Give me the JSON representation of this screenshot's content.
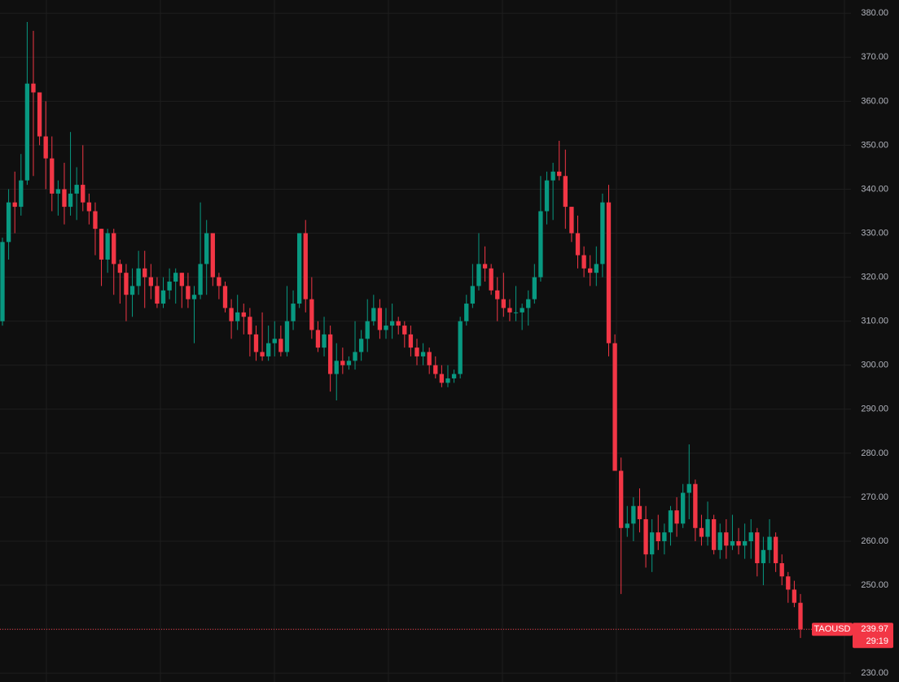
{
  "chart_data": {
    "type": "candlestick",
    "symbol": "TAOUSD",
    "countdown": "29:19",
    "up_color": "#089981",
    "down_color": "#f23645",
    "grid": true,
    "ylim": [
      228,
      383
    ],
    "yticks": [
      {
        "value": 230,
        "label": "230.00"
      },
      {
        "value": 240,
        "label": "240.00"
      },
      {
        "value": 250,
        "label": "250.00"
      },
      {
        "value": 260,
        "label": "260.00"
      },
      {
        "value": 270,
        "label": "270.00"
      },
      {
        "value": 280,
        "label": "280.00"
      },
      {
        "value": 290,
        "label": "290.00"
      },
      {
        "value": 300,
        "label": "300.00"
      },
      {
        "value": 310,
        "label": "310.00"
      },
      {
        "value": 320,
        "label": "320.00"
      },
      {
        "value": 330,
        "label": "330.00"
      },
      {
        "value": 340,
        "label": "340.00"
      },
      {
        "value": 350,
        "label": "350.00"
      },
      {
        "value": 360,
        "label": "360.00"
      },
      {
        "value": 370,
        "label": "370.00"
      },
      {
        "value": 380,
        "label": "380.00"
      }
    ],
    "open": [
      310,
      328,
      337,
      336,
      342,
      364,
      362,
      352,
      347,
      339,
      340,
      336,
      339,
      341,
      337,
      335,
      331,
      324,
      330,
      323,
      321,
      316,
      318,
      322,
      320,
      318,
      314,
      317,
      319,
      321,
      318,
      315,
      316,
      323,
      330,
      320,
      318,
      313,
      310,
      312,
      311,
      307,
      303,
      302,
      305,
      306,
      303,
      310,
      314,
      330,
      315,
      308,
      304,
      307,
      298,
      301,
      300,
      301,
      303,
      306,
      310,
      313,
      308,
      309,
      310,
      309,
      307,
      304,
      302,
      303,
      300,
      298,
      296,
      297,
      298,
      310,
      314,
      318,
      323,
      322,
      317,
      315,
      313,
      312,
      312,
      313,
      315,
      320,
      335,
      342,
      344,
      343,
      336,
      330,
      325,
      322,
      321,
      323,
      337,
      305,
      276,
      263,
      264,
      268,
      265,
      257,
      262,
      260,
      262,
      267,
      264,
      271,
      273,
      263,
      261,
      265,
      258,
      262,
      259,
      260,
      259,
      260,
      262,
      255,
      258,
      261,
      255,
      252,
      249,
      246
    ],
    "high": [
      329,
      340,
      344,
      348,
      378,
      376,
      362,
      360,
      352,
      342,
      346,
      353,
      345,
      350,
      339,
      337,
      331,
      331,
      331,
      324,
      323,
      322,
      326,
      326,
      323,
      320,
      320,
      322,
      322,
      321,
      321,
      318,
      337,
      333,
      330,
      321,
      319,
      315,
      316,
      314,
      313,
      309,
      312,
      309,
      310,
      309,
      318,
      317,
      330,
      333,
      320,
      310,
      311,
      309,
      305,
      304,
      302,
      310,
      308,
      315,
      316,
      315,
      313,
      314,
      311,
      310,
      309,
      306,
      305,
      304,
      302,
      300,
      300,
      299,
      311,
      316,
      323,
      330,
      327,
      323,
      320,
      321,
      315,
      318,
      314,
      317,
      323,
      343,
      344,
      346,
      351,
      349,
      336,
      334,
      327,
      325,
      327,
      339,
      341,
      307,
      279,
      268,
      270,
      272,
      268,
      265,
      266,
      264,
      268,
      270,
      273,
      282,
      274,
      266,
      269,
      266,
      264,
      265,
      266,
      263,
      264,
      265,
      263,
      261,
      265,
      262,
      257,
      253,
      251,
      248
    ],
    "low": [
      309,
      324,
      330,
      334,
      341,
      343,
      350,
      340,
      335,
      334,
      332,
      334,
      333,
      335,
      332,
      325,
      318,
      321,
      316,
      314,
      310,
      311,
      316,
      313,
      315,
      313,
      313,
      315,
      314,
      313,
      313,
      305,
      315,
      316,
      318,
      315,
      312,
      306,
      308,
      307,
      302,
      301,
      301,
      301,
      302,
      302,
      302,
      308,
      313,
      312,
      306,
      303,
      302,
      294,
      292,
      298,
      299,
      299,
      301,
      303,
      309,
      306,
      306,
      306,
      307,
      304,
      302,
      300,
      300,
      298,
      297,
      295,
      295,
      296,
      297,
      309,
      313,
      317,
      319,
      316,
      310,
      311,
      310,
      310,
      308,
      309,
      314,
      319,
      332,
      333,
      342,
      331,
      328,
      322,
      320,
      318,
      318,
      320,
      302,
      276,
      248,
      261,
      260,
      262,
      254,
      253,
      258,
      257,
      259,
      261,
      263,
      265,
      260,
      259,
      259,
      257,
      256,
      256,
      258,
      257,
      256,
      256,
      252,
      250,
      255,
      253,
      250,
      246,
      245,
      238
    ],
    "close": [
      328,
      337,
      336,
      342,
      364,
      362,
      352,
      347,
      339,
      340,
      336,
      339,
      341,
      337,
      335,
      331,
      324,
      330,
      323,
      321,
      316,
      318,
      322,
      320,
      318,
      314,
      317,
      319,
      321,
      318,
      315,
      316,
      323,
      330,
      320,
      318,
      313,
      310,
      312,
      311,
      307,
      303,
      302,
      305,
      306,
      303,
      310,
      314,
      330,
      315,
      308,
      304,
      307,
      298,
      301,
      300,
      301,
      303,
      306,
      310,
      313,
      308,
      309,
      310,
      309,
      307,
      304,
      302,
      303,
      300,
      298,
      296,
      297,
      298,
      310,
      314,
      318,
      323,
      322,
      317,
      315,
      313,
      312,
      312,
      313,
      315,
      320,
      335,
      342,
      344,
      343,
      336,
      330,
      325,
      322,
      321,
      323,
      337,
      305,
      276,
      263,
      264,
      268,
      265,
      257,
      262,
      260,
      262,
      267,
      264,
      271,
      273,
      263,
      261,
      265,
      258,
      262,
      259,
      260,
      259,
      260,
      262,
      255,
      258,
      261,
      255,
      252,
      249,
      246,
      239.97
    ]
  }
}
